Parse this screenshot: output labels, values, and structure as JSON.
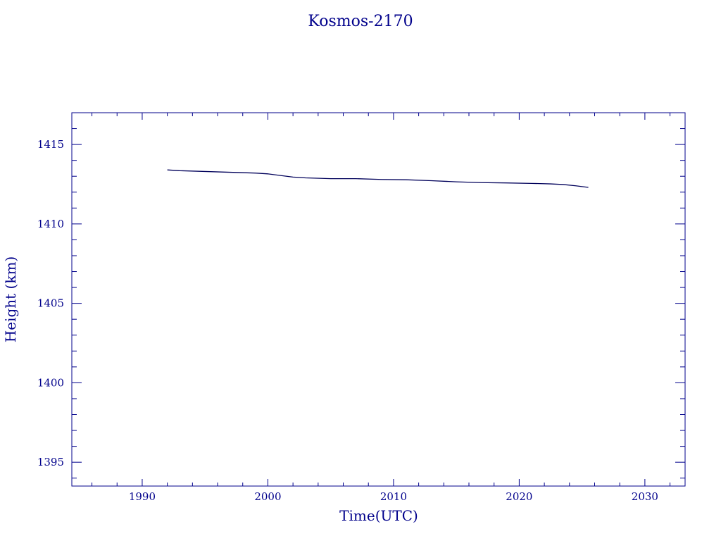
{
  "colors": {
    "axis": "#00008b",
    "line": "#00005a",
    "background": "#ffffff"
  },
  "chart_data": {
    "type": "line",
    "title": "Kosmos-2170",
    "xlabel": "Time(UTC)",
    "ylabel": "Height (km)",
    "xlim": [
      1984.4,
      2033.2
    ],
    "ylim": [
      1393.5,
      1417.0
    ],
    "xticks": [
      1990,
      2000,
      2010,
      2020,
      2030
    ],
    "yticks": [
      1395,
      1400,
      1405,
      1410,
      1415
    ],
    "xtick_labels": [
      "1990",
      "2000",
      "2010",
      "2020",
      "2030"
    ],
    "ytick_labels": [
      "1395",
      "1400",
      "1405",
      "1410",
      "1415"
    ],
    "x_minor_step": 2,
    "y_minor_step": 1,
    "grid": false,
    "legend": "none",
    "series": [
      {
        "x": [
          1992.0,
          1993.0,
          1995.0,
          1997.0,
          1999.0,
          2000.0,
          2001.0,
          2002.0,
          2003.0,
          2005.0,
          2007.0,
          2009.0,
          2011.0,
          2013.0,
          2015.0,
          2017.0,
          2019.0,
          2021.0,
          2022.5,
          2023.5,
          2024.5,
          2025.5
        ],
        "y": [
          1413.4,
          1413.35,
          1413.3,
          1413.25,
          1413.2,
          1413.15,
          1413.05,
          1412.95,
          1412.9,
          1412.85,
          1412.85,
          1412.8,
          1412.78,
          1412.72,
          1412.65,
          1412.6,
          1412.58,
          1412.55,
          1412.52,
          1412.48,
          1412.4,
          1412.3
        ]
      }
    ]
  }
}
